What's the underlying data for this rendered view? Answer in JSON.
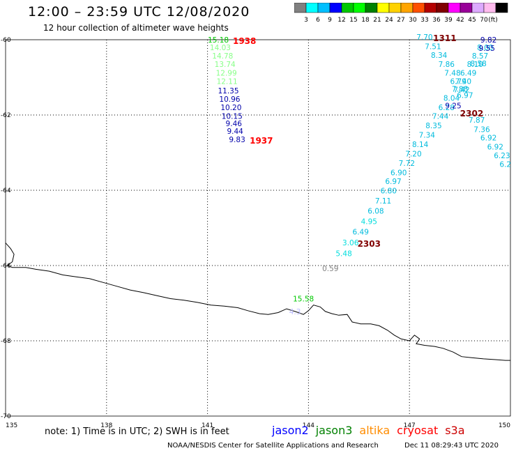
{
  "header": {
    "title": "12:00 – 23:59 UTC 12/08/2020",
    "subtitle": "12 hour collection of altimeter wave heights"
  },
  "colorbar": {
    "colors": [
      "#808080",
      "#00ffff",
      "#00bfff",
      "#0000ff",
      "#00c800",
      "#00ff00",
      "#008000",
      "#ffff00",
      "#ffd200",
      "#ffa500",
      "#ff5000",
      "#b40000",
      "#800000",
      "#ff00ff",
      "#990099",
      "#ddaaff",
      "#ffbbee",
      "#000000"
    ],
    "labels": [
      "3",
      "6",
      "9",
      "12",
      "15",
      "18",
      "21",
      "24",
      "27",
      "30",
      "33",
      "36",
      "39",
      "42",
      "45",
      "70"
    ],
    "unit": "(ft)"
  },
  "map": {
    "lon_range": [
      135,
      150
    ],
    "lat_range": [
      -70,
      -60
    ],
    "lon_labels": [
      "135",
      "138",
      "141",
      "144",
      "147",
      "150"
    ],
    "lat_labels": [
      "-60",
      "-62",
      "-64",
      "-66",
      "-68",
      "-70"
    ],
    "coastline_color": "#000000",
    "tracks": [
      {
        "time": "1938",
        "time_color": "#ff0000",
        "time_pos": [
          142.1,
          -60.07
        ],
        "points": [
          {
            "lon": 141.32,
            "lat": -60.07,
            "swh": "15.18",
            "color": "#00c800"
          },
          {
            "lon": 141.38,
            "lat": -60.28,
            "swh": "14.03",
            "color": "#88ff88"
          },
          {
            "lon": 141.45,
            "lat": -60.5,
            "swh": "14.78",
            "color": "#88ff88"
          },
          {
            "lon": 141.52,
            "lat": -60.72,
            "swh": "13.74",
            "color": "#88ff88"
          },
          {
            "lon": 141.56,
            "lat": -60.95,
            "swh": "12.99",
            "color": "#88ff88"
          },
          {
            "lon": 141.58,
            "lat": -61.18,
            "swh": "12.11",
            "color": "#88ff88"
          },
          {
            "lon": 141.62,
            "lat": -61.43,
            "swh": "11.35",
            "color": "#0000aa"
          },
          {
            "lon": 141.66,
            "lat": -61.65,
            "swh": "10.96",
            "color": "#0000aa"
          },
          {
            "lon": 141.7,
            "lat": -61.87,
            "swh": "10.20",
            "color": "#0000aa"
          },
          {
            "lon": 141.73,
            "lat": -62.1,
            "swh": "10.15",
            "color": "#0000aa"
          },
          {
            "lon": 141.78,
            "lat": -62.3,
            "swh": "9.46",
            "color": "#0000aa"
          },
          {
            "lon": 141.82,
            "lat": -62.5,
            "swh": "9.44",
            "color": "#0000aa"
          },
          {
            "lon": 141.88,
            "lat": -62.72,
            "swh": "9.83",
            "color": "#0000aa"
          }
        ]
      },
      {
        "time": "1937",
        "time_color": "#ff0000",
        "time_pos": [
          142.6,
          -62.72
        ],
        "points": []
      },
      {
        "time": "2303",
        "time_color": "#800000",
        "time_pos": [
          145.8,
          -65.46
        ],
        "points": [
          {
            "lon": 145.05,
            "lat": -65.75,
            "swh": "5.48",
            "color": "#00dddd"
          },
          {
            "lon": 145.25,
            "lat": -65.46,
            "swh": "3.06",
            "color": "#00dddd"
          },
          {
            "lon": 145.55,
            "lat": -65.18,
            "swh": "6.49",
            "color": "#00bbdd"
          },
          {
            "lon": 145.8,
            "lat": -64.9,
            "swh": "4.95",
            "color": "#00dddd"
          },
          {
            "lon": 146.0,
            "lat": -64.62,
            "swh": "6.08",
            "color": "#00bbdd"
          },
          {
            "lon": 146.22,
            "lat": -64.35,
            "swh": "7.11",
            "color": "#00bbdd"
          },
          {
            "lon": 146.38,
            "lat": -64.08,
            "swh": "6.80",
            "color": "#00bbdd"
          },
          {
            "lon": 146.52,
            "lat": -63.83,
            "swh": "6.97",
            "color": "#00bbdd"
          },
          {
            "lon": 146.68,
            "lat": -63.6,
            "swh": "6.90",
            "color": "#00bbdd"
          },
          {
            "lon": 146.92,
            "lat": -63.35,
            "swh": "7.72",
            "color": "#00bbdd"
          },
          {
            "lon": 147.12,
            "lat": -63.1,
            "swh": "7.20",
            "color": "#00bbdd"
          },
          {
            "lon": 147.32,
            "lat": -62.85,
            "swh": "8.14",
            "color": "#00bbdd"
          },
          {
            "lon": 147.52,
            "lat": -62.6,
            "swh": "7.34",
            "color": "#00bbdd"
          },
          {
            "lon": 147.72,
            "lat": -62.35,
            "swh": "8.35",
            "color": "#00bbdd"
          },
          {
            "lon": 147.92,
            "lat": -62.1,
            "swh": "7.44",
            "color": "#00bbdd"
          },
          {
            "lon": 148.1,
            "lat": -61.87,
            "swh": "6.28",
            "color": "#00bbdd"
          },
          {
            "lon": 148.25,
            "lat": -61.62,
            "swh": "8.04",
            "color": "#00bbdd"
          },
          {
            "lon": 148.55,
            "lat": -61.4,
            "swh": "7.42",
            "color": "#00bbdd"
          },
          {
            "lon": 148.6,
            "lat": -61.18,
            "swh": "7.40",
            "color": "#00bbdd"
          },
          {
            "lon": 148.75,
            "lat": -60.95,
            "swh": "6.49",
            "color": "#00bbdd"
          },
          {
            "lon": 148.95,
            "lat": -60.72,
            "swh": "8.10",
            "color": "#00bbdd"
          },
          {
            "lon": 149.1,
            "lat": -60.5,
            "swh": "8.57",
            "color": "#00bbdd"
          },
          {
            "lon": 149.25,
            "lat": -60.28,
            "swh": "8.00",
            "color": "#00bbdd"
          },
          {
            "lon": 149.35,
            "lat": -60.07,
            "swh": "9.82",
            "color": "#0000aa"
          }
        ]
      },
      {
        "time": "1311",
        "time_color": "#800000",
        "time_pos": [
          148.05,
          -60.0
        ],
        "points": [
          {
            "lon": 147.45,
            "lat": -60.0,
            "swh": "7.70",
            "color": "#00bbdd"
          },
          {
            "lon": 147.7,
            "lat": -60.25,
            "swh": "7.51",
            "color": "#00bbdd"
          },
          {
            "lon": 147.88,
            "lat": -60.48,
            "swh": "8.34",
            "color": "#00bbdd"
          },
          {
            "lon": 148.1,
            "lat": -60.72,
            "swh": "7.86",
            "color": "#00bbdd"
          },
          {
            "lon": 148.28,
            "lat": -60.95,
            "swh": "7.48",
            "color": "#00bbdd"
          },
          {
            "lon": 148.45,
            "lat": -61.18,
            "swh": "6.79",
            "color": "#00bbdd"
          },
          {
            "lon": 148.5,
            "lat": -61.38,
            "swh": "7.88",
            "color": "#00bbdd"
          },
          {
            "lon": 148.65,
            "lat": -61.55,
            "swh": "6.97",
            "color": "#00bbdd"
          },
          {
            "lon": 148.3,
            "lat": -61.82,
            "swh": "9.25",
            "color": "#0000aa"
          },
          {
            "lon": 149.0,
            "lat": -62.2,
            "swh": "7.87",
            "color": "#00bbdd"
          },
          {
            "lon": 149.15,
            "lat": -62.45,
            "swh": "7.36",
            "color": "#00bbdd"
          },
          {
            "lon": 149.35,
            "lat": -62.68,
            "swh": "6.92",
            "color": "#00bbdd"
          },
          {
            "lon": 149.55,
            "lat": -62.92,
            "swh": "6.92",
            "color": "#00bbdd"
          },
          {
            "lon": 149.75,
            "lat": -63.15,
            "swh": "6.23",
            "color": "#00bbdd"
          },
          {
            "lon": 149.85,
            "lat": -63.38,
            "swh": "6.2",
            "color": "#00bbdd"
          },
          {
            "lon": 149.3,
            "lat": -60.3,
            "swh": "9.55",
            "color": "#0000aa"
          },
          {
            "lon": 149.05,
            "lat": -60.7,
            "swh": "8.58",
            "color": "#00bbdd"
          }
        ]
      },
      {
        "time": "2302",
        "time_color": "#800000",
        "time_pos": [
          148.85,
          -62.0
        ],
        "points": []
      },
      {
        "time": "",
        "time_color": "#000000",
        "time_pos": [
          0,
          0
        ],
        "points": [
          {
            "lon": 144.65,
            "lat": -66.15,
            "swh": "0.59",
            "color": "#808080"
          },
          {
            "lon": 143.85,
            "lat": -66.95,
            "swh": "15.58",
            "color": "#00c800"
          },
          {
            "lon": 143.6,
            "lat": -67.3,
            "swh": "4.3",
            "color": "#bbbbff"
          }
        ]
      }
    ]
  },
  "footer": {
    "note": "note: 1) Time is in UTC; 2) SWH is in feet",
    "legend": [
      {
        "name": "jason2",
        "color": "#0000ff"
      },
      {
        "name": "jason3",
        "color": "#008000"
      },
      {
        "name": "altika",
        "color": "#ff8c00"
      },
      {
        "name": "cryosat",
        "color": "#ff0000"
      },
      {
        "name": "s3a",
        "color": "#cc0000"
      }
    ],
    "credit": "NOAA/NESDIS Center for Satellite Applications and Research",
    "timestamp": "Dec 11 08:29:43 UTC 2020"
  }
}
